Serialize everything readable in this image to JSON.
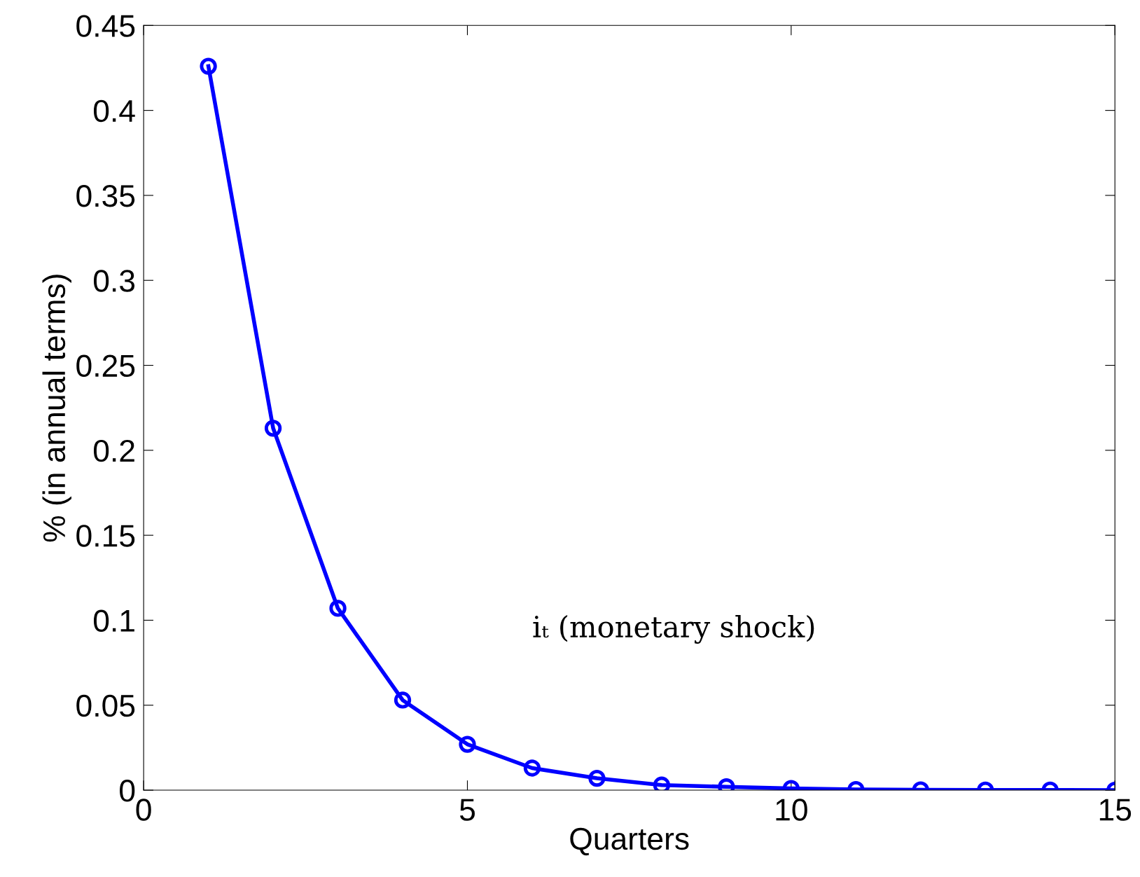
{
  "chart_data": {
    "type": "line",
    "xlabel": "Quarters",
    "ylabel": "% (in annual terms)",
    "x": [
      1,
      2,
      3,
      4,
      5,
      6,
      7,
      8,
      9,
      10,
      11,
      12,
      13,
      14,
      15
    ],
    "series": [
      {
        "color": "#0000ff",
        "values": [
          0.426,
          0.213,
          0.107,
          0.053,
          0.027,
          0.013,
          0.007,
          0.003,
          0.002,
          0.001,
          0.0004,
          0.0002,
          0.0001,
          0.0001,
          0.0
        ]
      }
    ],
    "marker": "circle",
    "line_style": "solid",
    "xlim": [
      0,
      15
    ],
    "xticks": [
      0,
      5,
      10,
      15
    ],
    "ylim": [
      0,
      0.45
    ],
    "yticks": [
      0,
      0.05,
      0.1,
      0.15,
      0.2,
      0.25,
      0.3,
      0.35,
      0.4,
      0.45
    ],
    "grid": false,
    "legend": false,
    "annotations": [
      "iₜ (monetary shock)"
    ]
  }
}
